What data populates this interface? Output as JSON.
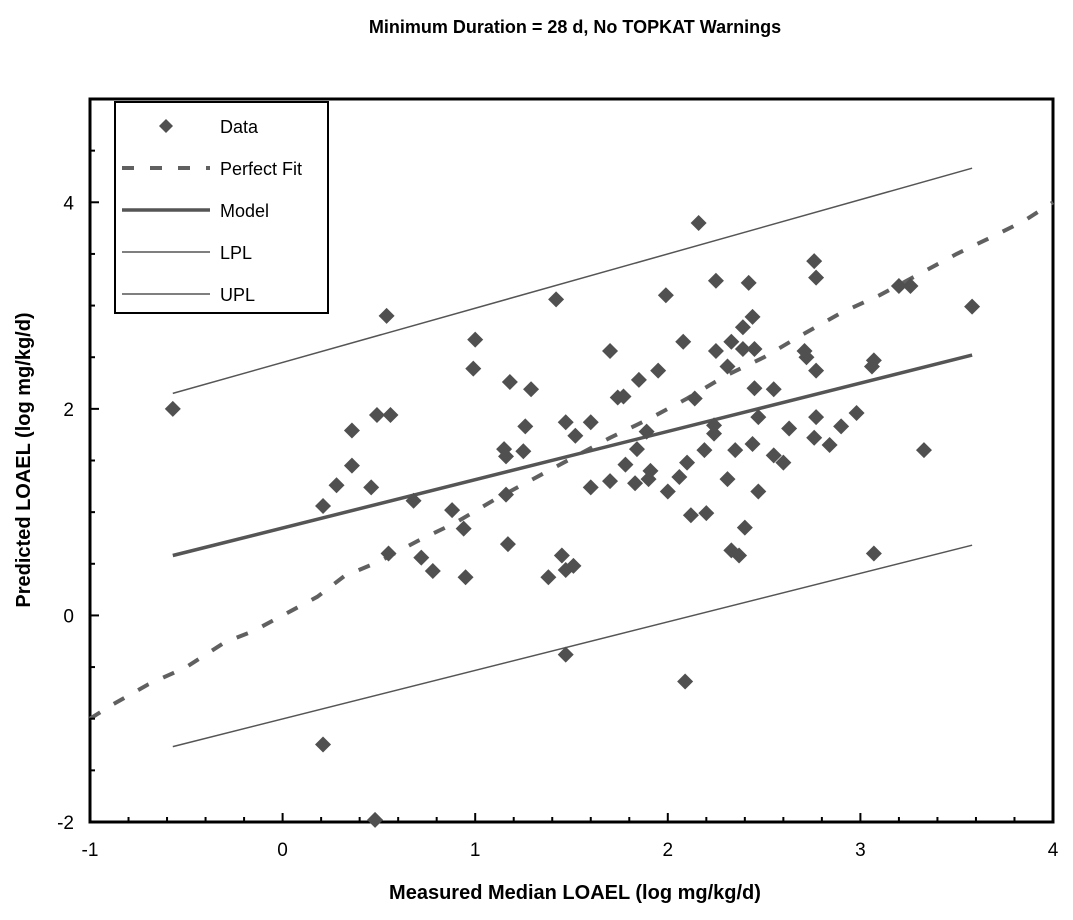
{
  "chart_data": {
    "type": "scatter",
    "title": "Minimum Duration = 28 d, No TOPKAT Warnings",
    "xlabel": "Measured Median LOAEL (log mg/kg/d)",
    "ylabel": "Predicted LOAEL (log mg/kg/d)",
    "xlim": [
      -1,
      4
    ],
    "ylim": [
      -2,
      5
    ],
    "xticks": [
      -1,
      0,
      1,
      2,
      3,
      4
    ],
    "xtick_labels": [
      "-1",
      "0",
      "1",
      "2",
      "3",
      "4"
    ],
    "yticks": [
      -2,
      0,
      2,
      4
    ],
    "ytick_labels": [
      "-2",
      "0",
      "2",
      "4"
    ],
    "grid": false,
    "legend_position": "top-left",
    "colors": {
      "points": "#505050",
      "perfect_fit": "#606060",
      "model": "#555555",
      "limits": "#555555"
    },
    "series": [
      {
        "name": "Data",
        "kind": "markers",
        "points": [
          [
            -0.57,
            2.0
          ],
          [
            0.21,
            -1.25
          ],
          [
            0.21,
            1.06
          ],
          [
            0.28,
            1.26
          ],
          [
            0.36,
            1.45
          ],
          [
            0.36,
            1.79
          ],
          [
            0.46,
            1.24
          ],
          [
            0.48,
            -1.98
          ],
          [
            0.49,
            1.94
          ],
          [
            0.54,
            2.9
          ],
          [
            0.55,
            0.6
          ],
          [
            0.56,
            1.94
          ],
          [
            0.68,
            1.11
          ],
          [
            0.72,
            0.56
          ],
          [
            0.78,
            0.43
          ],
          [
            0.88,
            1.02
          ],
          [
            0.94,
            0.84
          ],
          [
            0.95,
            0.37
          ],
          [
            0.99,
            2.39
          ],
          [
            1.0,
            2.67
          ],
          [
            1.15,
            1.61
          ],
          [
            1.16,
            1.54
          ],
          [
            1.16,
            1.17
          ],
          [
            1.17,
            0.69
          ],
          [
            1.18,
            2.26
          ],
          [
            1.25,
            1.59
          ],
          [
            1.26,
            1.83
          ],
          [
            1.29,
            2.19
          ],
          [
            1.38,
            0.37
          ],
          [
            1.42,
            3.06
          ],
          [
            1.45,
            0.58
          ],
          [
            1.47,
            1.87
          ],
          [
            1.47,
            0.44
          ],
          [
            1.47,
            -0.38
          ],
          [
            1.51,
            0.48
          ],
          [
            1.52,
            1.74
          ],
          [
            1.6,
            1.87
          ],
          [
            1.6,
            1.24
          ],
          [
            1.7,
            2.56
          ],
          [
            1.7,
            1.3
          ],
          [
            1.74,
            2.11
          ],
          [
            1.77,
            2.12
          ],
          [
            1.78,
            1.46
          ],
          [
            1.83,
            1.28
          ],
          [
            1.84,
            1.61
          ],
          [
            1.85,
            2.28
          ],
          [
            1.89,
            1.78
          ],
          [
            1.9,
            1.32
          ],
          [
            1.91,
            1.4
          ],
          [
            1.95,
            2.37
          ],
          [
            1.99,
            3.1
          ],
          [
            2.0,
            1.2
          ],
          [
            2.06,
            1.34
          ],
          [
            2.08,
            2.65
          ],
          [
            2.09,
            -0.64
          ],
          [
            2.1,
            1.48
          ],
          [
            2.12,
            0.97
          ],
          [
            2.14,
            2.1
          ],
          [
            2.16,
            3.8
          ],
          [
            2.19,
            1.6
          ],
          [
            2.2,
            0.99
          ],
          [
            2.24,
            1.76
          ],
          [
            2.24,
            1.84
          ],
          [
            2.25,
            3.24
          ],
          [
            2.25,
            2.56
          ],
          [
            2.31,
            1.32
          ],
          [
            2.31,
            2.41
          ],
          [
            2.33,
            0.63
          ],
          [
            2.33,
            2.65
          ],
          [
            2.35,
            1.6
          ],
          [
            2.37,
            0.58
          ],
          [
            2.39,
            2.79
          ],
          [
            2.39,
            2.58
          ],
          [
            2.4,
            0.85
          ],
          [
            2.42,
            3.22
          ],
          [
            2.44,
            2.89
          ],
          [
            2.44,
            1.66
          ],
          [
            2.45,
            2.58
          ],
          [
            2.45,
            2.2
          ],
          [
            2.47,
            1.92
          ],
          [
            2.47,
            1.2
          ],
          [
            2.55,
            1.55
          ],
          [
            2.55,
            2.19
          ],
          [
            2.6,
            1.48
          ],
          [
            2.63,
            1.81
          ],
          [
            2.71,
            2.56
          ],
          [
            2.72,
            2.5
          ],
          [
            2.76,
            3.43
          ],
          [
            2.76,
            1.72
          ],
          [
            2.77,
            3.27
          ],
          [
            2.77,
            2.37
          ],
          [
            2.77,
            1.92
          ],
          [
            2.84,
            1.65
          ],
          [
            2.9,
            1.83
          ],
          [
            2.98,
            1.96
          ],
          [
            3.06,
            2.41
          ],
          [
            3.07,
            2.47
          ],
          [
            3.07,
            0.6
          ],
          [
            3.2,
            3.19
          ],
          [
            3.26,
            3.19
          ],
          [
            3.33,
            1.6
          ],
          [
            3.58,
            2.99
          ]
        ]
      },
      {
        "name": "Perfect Fit",
        "kind": "dashed-line",
        "points": [
          [
            -1.0,
            -1.0
          ],
          [
            -0.88,
            -0.86
          ],
          [
            -0.7,
            -0.67
          ],
          [
            -0.5,
            -0.5
          ],
          [
            -0.3,
            -0.26
          ],
          [
            -0.15,
            -0.15
          ],
          [
            0.05,
            0.05
          ],
          [
            0.18,
            0.18
          ],
          [
            0.32,
            0.38
          ],
          [
            0.5,
            0.52
          ],
          [
            0.7,
            0.72
          ],
          [
            0.9,
            0.9
          ],
          [
            1.1,
            1.12
          ],
          [
            1.3,
            1.32
          ],
          [
            1.5,
            1.52
          ],
          [
            1.7,
            1.72
          ],
          [
            1.9,
            1.9
          ],
          [
            2.1,
            2.1
          ],
          [
            2.3,
            2.32
          ],
          [
            2.5,
            2.5
          ],
          [
            2.7,
            2.72
          ],
          [
            2.9,
            2.93
          ],
          [
            3.1,
            3.1
          ],
          [
            3.3,
            3.3
          ],
          [
            3.5,
            3.5
          ],
          [
            3.7,
            3.68
          ],
          [
            3.85,
            3.82
          ],
          [
            4.0,
            4.0
          ]
        ]
      },
      {
        "name": "Model",
        "kind": "thick-line",
        "points": [
          [
            -0.57,
            0.58
          ],
          [
            3.58,
            2.52
          ]
        ]
      },
      {
        "name": "LPL",
        "kind": "thin-line",
        "points": [
          [
            -0.57,
            -1.27
          ],
          [
            3.58,
            0.68
          ]
        ]
      },
      {
        "name": "UPL",
        "kind": "thin-line",
        "points": [
          [
            -0.57,
            2.15
          ],
          [
            3.58,
            4.33
          ]
        ]
      }
    ]
  }
}
